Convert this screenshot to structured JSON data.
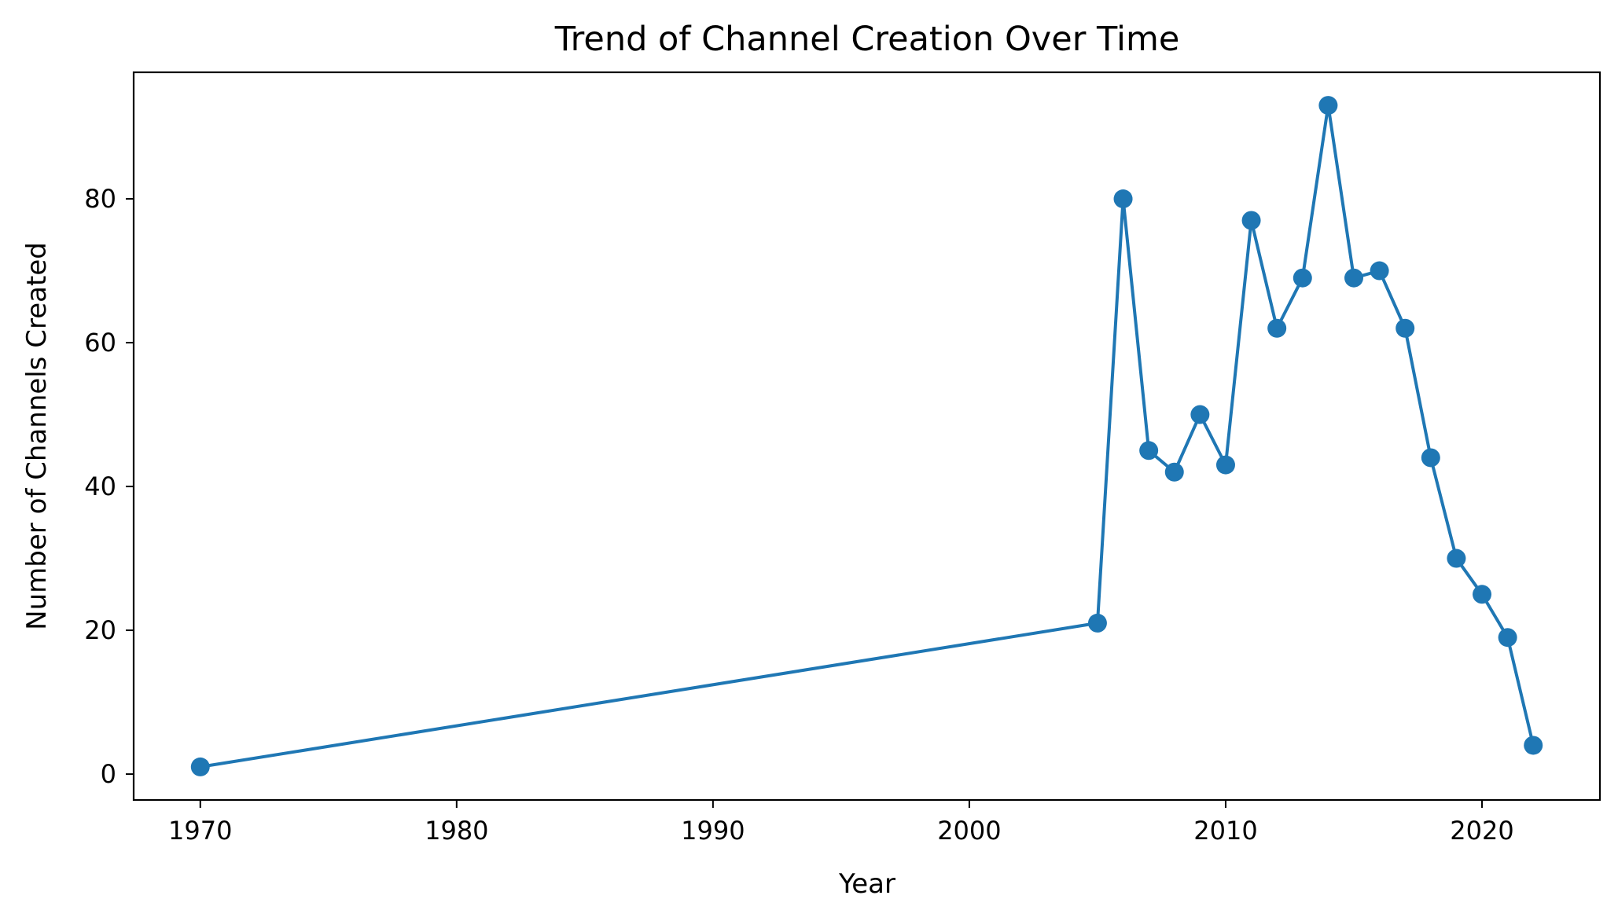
{
  "chart_data": {
    "type": "line",
    "title": "Trend of Channel Creation Over Time",
    "xlabel": "Year",
    "ylabel": "Number of Channels Created",
    "xlim": [
      1967.4,
      2024.6
    ],
    "ylim": [
      -3.6,
      97.6
    ],
    "xticks": [
      1970,
      1980,
      1990,
      2000,
      2010,
      2020
    ],
    "yticks": [
      0,
      20,
      40,
      60,
      80
    ],
    "grid": false,
    "legend": "none",
    "color": "#1f77b4",
    "marker": "circle",
    "series": [
      {
        "x": [
          1970,
          2005,
          2006,
          2007,
          2008,
          2009,
          2010,
          2011,
          2012,
          2013,
          2014,
          2015,
          2016,
          2017,
          2018,
          2019,
          2020,
          2021,
          2022
        ],
        "values": [
          1,
          21,
          80,
          45,
          42,
          50,
          43,
          77,
          62,
          69,
          93,
          69,
          70,
          62,
          44,
          30,
          25,
          19,
          4
        ]
      }
    ]
  }
}
